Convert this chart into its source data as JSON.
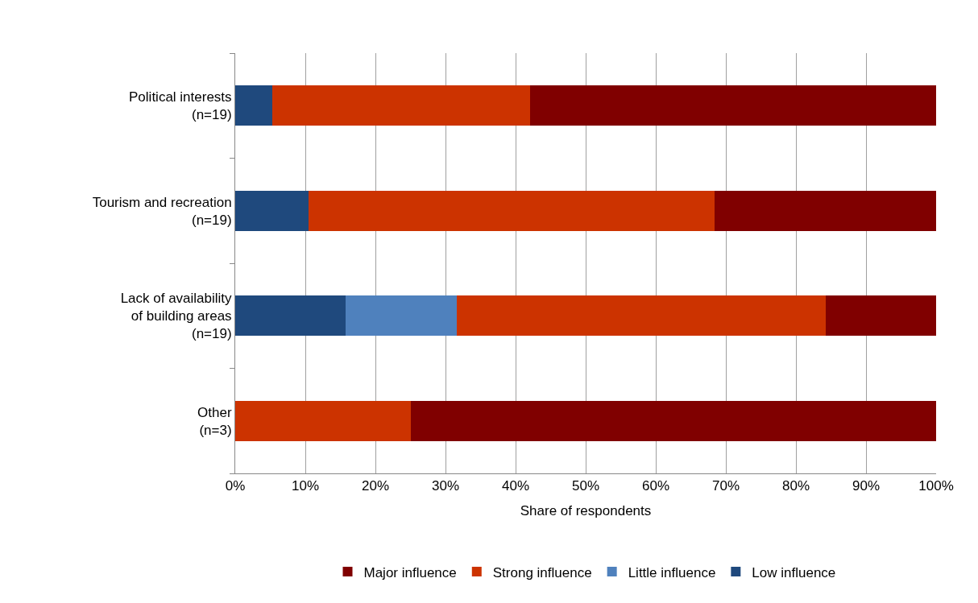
{
  "chart_data": {
    "type": "bar",
    "orientation": "horizontal",
    "stacked": true,
    "categories": [
      "Political interests\n(n=19)",
      "Tourism and recreation\n(n=19)",
      "Lack of availability\nof building areas\n(n=19)",
      "Other\n(n=3)"
    ],
    "series": [
      {
        "name": "Low influence",
        "color": "#1f497d",
        "values": [
          5.3,
          10.5,
          15.8,
          0
        ]
      },
      {
        "name": "Little influence",
        "color": "#4f81bd",
        "values": [
          0,
          0,
          15.8,
          0
        ]
      },
      {
        "name": "Strong influence",
        "color": "#cc3300",
        "values": [
          36.8,
          57.9,
          52.6,
          25
        ]
      },
      {
        "name": "Major influence",
        "color": "#800000",
        "values": [
          57.9,
          31.6,
          15.8,
          75
        ]
      }
    ],
    "xlabel": "Share of respondents",
    "xlim": [
      0,
      100
    ],
    "xticks": [
      {
        "value": 0,
        "label": "0%"
      },
      {
        "value": 10,
        "label": "10%"
      },
      {
        "value": 20,
        "label": "20%"
      },
      {
        "value": 30,
        "label": "30%"
      },
      {
        "value": 40,
        "label": "40%"
      },
      {
        "value": 50,
        "label": "50%"
      },
      {
        "value": 60,
        "label": "60%"
      },
      {
        "value": 70,
        "label": "70%"
      },
      {
        "value": 80,
        "label": "80%"
      },
      {
        "value": 90,
        "label": "90%"
      },
      {
        "value": 100,
        "label": "100%"
      }
    ],
    "grid": "x",
    "legend": "bottom"
  }
}
